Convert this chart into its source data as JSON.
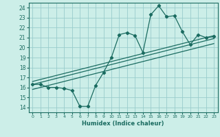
{
  "title": "",
  "xlabel": "Humidex (Indice chaleur)",
  "bg_color": "#cceee8",
  "grid_color": "#99cccc",
  "line_color": "#1a6b60",
  "xlim": [
    -0.5,
    23.5
  ],
  "ylim": [
    13.5,
    24.5
  ],
  "xticks": [
    0,
    1,
    2,
    3,
    4,
    5,
    6,
    7,
    8,
    9,
    10,
    11,
    12,
    13,
    14,
    15,
    16,
    17,
    18,
    19,
    20,
    21,
    22,
    23
  ],
  "yticks": [
    14,
    15,
    16,
    17,
    18,
    19,
    20,
    21,
    22,
    23,
    24
  ],
  "main_line": {
    "x": [
      0,
      1,
      2,
      3,
      4,
      5,
      6,
      7,
      8,
      9,
      10,
      11,
      12,
      13,
      14,
      15,
      16,
      17,
      18,
      19,
      20,
      21,
      22,
      23
    ],
    "y": [
      16.3,
      16.3,
      16.0,
      16.0,
      15.9,
      15.7,
      14.1,
      14.1,
      16.2,
      17.5,
      19.0,
      21.3,
      21.5,
      21.2,
      19.5,
      23.3,
      24.2,
      23.1,
      23.2,
      21.6,
      20.3,
      21.3,
      21.0,
      21.1
    ]
  },
  "line2": {
    "x": [
      0,
      23
    ],
    "y": [
      16.6,
      21.2
    ]
  },
  "line3": {
    "x": [
      0,
      23
    ],
    "y": [
      16.3,
      20.9
    ]
  },
  "line4": {
    "x": [
      0,
      23
    ],
    "y": [
      15.8,
      20.4
    ]
  }
}
